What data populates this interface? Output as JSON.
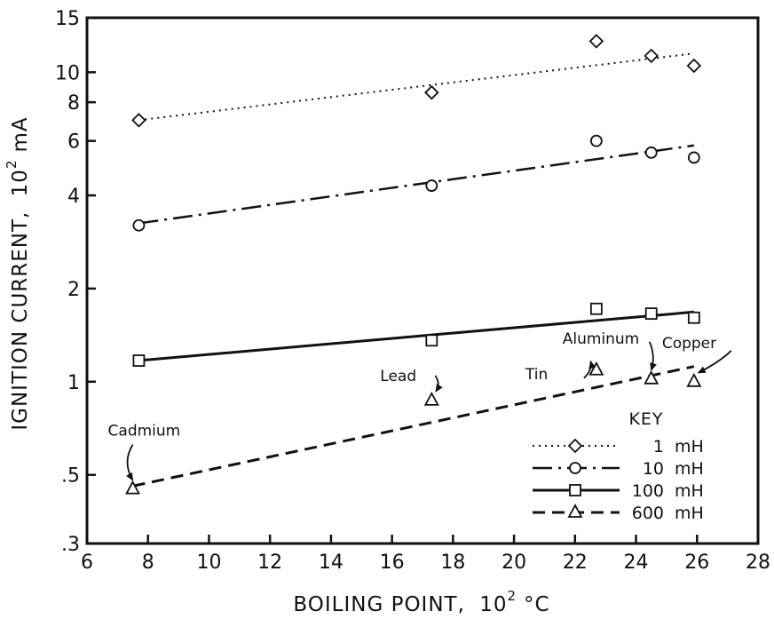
{
  "chart_data": {
    "type": "scatter",
    "title": "",
    "xlabel": "BOILING POINT,",
    "xlabel_sup": "2",
    "xlabel_prefix": "10",
    "xlabel_unit": "°C",
    "ylabel": "IGNITION CURRENT,",
    "ylabel_prefix": "10",
    "ylabel_sup": "2",
    "ylabel_unit": "mA",
    "xlim": [
      6,
      28
    ],
    "ylim": [
      0.3,
      15
    ],
    "yscale": "log",
    "grid": false,
    "x_ticks": [
      6,
      8,
      10,
      12,
      14,
      16,
      18,
      20,
      22,
      24,
      26,
      28
    ],
    "x_tick_labels": [
      "6",
      "8",
      "10",
      "12",
      "14",
      "16",
      "18",
      "20",
      "22",
      "24",
      "26",
      "28"
    ],
    "y_ticks": [
      0.3,
      0.5,
      1,
      2,
      4,
      6,
      8,
      10,
      15
    ],
    "y_tick_labels": [
      ".3",
      ".5",
      "1",
      "2",
      "4",
      "6",
      "8",
      "10",
      "15"
    ],
    "legend_title": "KEY",
    "legend_position": "bottom-right",
    "series": [
      {
        "name": "1 mH",
        "name_num": "1",
        "name_unit": "mH",
        "marker": "diamond",
        "line": "dotted",
        "x": [
          7.7,
          17.3,
          22.7,
          24.5,
          25.9
        ],
        "y": [
          7.0,
          8.6,
          12.6,
          11.3,
          10.5
        ],
        "fit": {
          "x": [
            7.7,
            25.9
          ],
          "y": [
            7.0,
            11.5
          ]
        }
      },
      {
        "name": "10 mH",
        "name_num": "10",
        "name_unit": "mH",
        "marker": "circle",
        "line": "dash-dot",
        "x": [
          7.7,
          17.3,
          22.7,
          24.5,
          25.9
        ],
        "y": [
          3.2,
          4.3,
          6.0,
          5.5,
          5.3
        ],
        "fit": {
          "x": [
            7.7,
            25.9
          ],
          "y": [
            3.25,
            5.8
          ]
        }
      },
      {
        "name": "100 mH",
        "name_num": "100",
        "name_unit": "mH",
        "marker": "square",
        "line": "solid",
        "x": [
          7.7,
          17.3,
          22.7,
          24.5,
          25.9
        ],
        "y": [
          1.17,
          1.36,
          1.72,
          1.66,
          1.61
        ],
        "fit": {
          "x": [
            7.7,
            25.9
          ],
          "y": [
            1.17,
            1.68
          ]
        }
      },
      {
        "name": "600 mH",
        "name_num": "600",
        "name_unit": "mH",
        "marker": "triangle",
        "line": "dashed",
        "x": [
          7.5,
          17.3,
          22.7,
          24.5,
          25.9
        ],
        "y": [
          0.45,
          0.87,
          1.09,
          1.02,
          1.0
        ],
        "fit": {
          "x": [
            7.5,
            25.9
          ],
          "y": [
            0.46,
            1.12
          ]
        }
      }
    ],
    "annotations": [
      {
        "text": "Cadmium",
        "x": 7.5,
        "y": 0.45
      },
      {
        "text": "Lead",
        "x": 17.3,
        "y": 0.87
      },
      {
        "text": "Tin",
        "x": 22.7,
        "y": 1.09
      },
      {
        "text": "Aluminum",
        "x": 24.5,
        "y": 1.02
      },
      {
        "text": "Copper",
        "x": 25.9,
        "y": 1.0
      }
    ]
  }
}
